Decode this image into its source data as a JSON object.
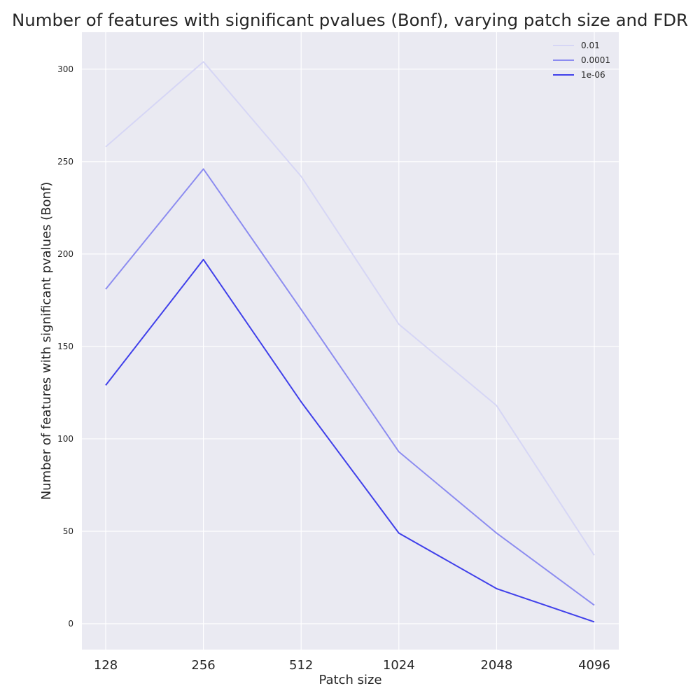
{
  "chart_data": {
    "type": "line",
    "title": "Number of features with significant pvalues (Bonf), varying patch size and FDR",
    "xlabel": "Patch size",
    "ylabel": "Number of features with significant pvalues (Bonf)",
    "categories": [
      "128",
      "256",
      "512",
      "1024",
      "2048",
      "4096"
    ],
    "ylim": [
      -14,
      320
    ],
    "yticks": [
      0,
      50,
      100,
      150,
      200,
      250,
      300
    ],
    "grid": true,
    "legend_position": "top-right",
    "background_color": "#eaeaf2",
    "series": [
      {
        "name": "0.01",
        "color": "#d6d6f5",
        "values": [
          258,
          304,
          242,
          162,
          118,
          37
        ]
      },
      {
        "name": "0.0001",
        "color": "#8c8cf0",
        "values": [
          181,
          246,
          170,
          93,
          49,
          10
        ]
      },
      {
        "name": "1e-06",
        "color": "#4040ea",
        "values": [
          129,
          197,
          120,
          49,
          19,
          1
        ]
      }
    ]
  }
}
